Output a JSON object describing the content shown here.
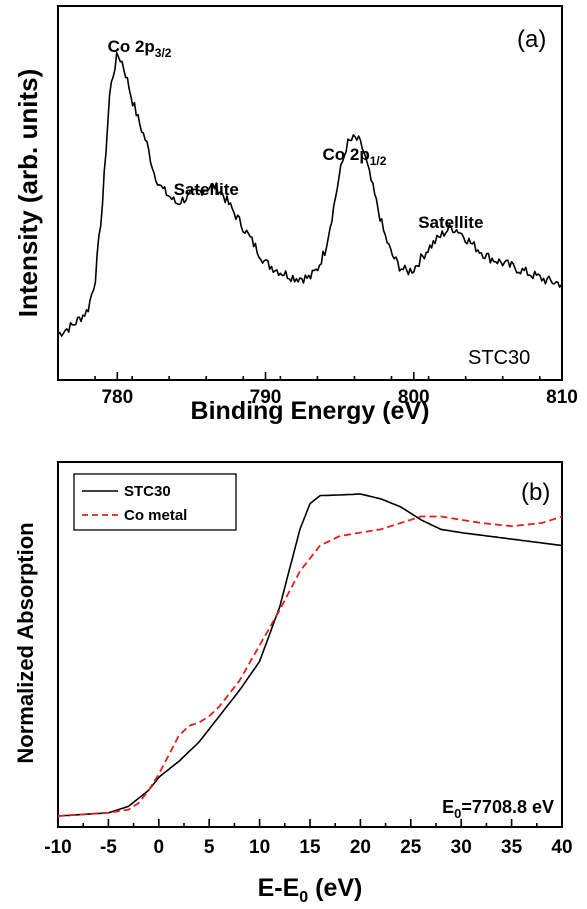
{
  "chart_data": [
    {
      "panel": "(a)",
      "type": "line",
      "xlabel": "Binding Energy (eV)",
      "ylabel": "Intensity (arb. units)",
      "xlim": [
        776,
        810
      ],
      "xticks": [
        780,
        790,
        800,
        810
      ],
      "yticks_labeled": false,
      "grid": false,
      "sample_label": "STC30",
      "annotations": [
        {
          "text": "Co 2p",
          "sub": "3/2",
          "x": 781.5
        },
        {
          "text": "Satellite",
          "sub": "",
          "x": 786
        },
        {
          "text": "Co 2p",
          "sub": "1/2",
          "x": 796
        },
        {
          "text": "Satellite",
          "sub": "",
          "x": 802.5
        }
      ],
      "series": [
        {
          "color": "#000000",
          "x": [
            776,
            777,
            778,
            778.5,
            779,
            779.5,
            780,
            780.3,
            780.6,
            781,
            781.5,
            782,
            782.5,
            783,
            784,
            785,
            786,
            786.5,
            787,
            788,
            789,
            790,
            791,
            792,
            793,
            793.5,
            794,
            794.5,
            795,
            795.5,
            796,
            796.3,
            796.6,
            797,
            797.5,
            798,
            798.5,
            799,
            799.5,
            800,
            801,
            802,
            802.5,
            803,
            804,
            805,
            806,
            807,
            808,
            809,
            810
          ],
          "y": [
            0.06,
            0.09,
            0.14,
            0.24,
            0.5,
            0.88,
            1.0,
            0.98,
            0.93,
            0.85,
            0.77,
            0.7,
            0.6,
            0.55,
            0.5,
            0.53,
            0.55,
            0.56,
            0.54,
            0.46,
            0.38,
            0.3,
            0.27,
            0.25,
            0.25,
            0.28,
            0.34,
            0.46,
            0.6,
            0.7,
            0.72,
            0.71,
            0.68,
            0.6,
            0.5,
            0.4,
            0.33,
            0.29,
            0.27,
            0.28,
            0.35,
            0.4,
            0.42,
            0.41,
            0.36,
            0.32,
            0.3,
            0.28,
            0.26,
            0.24,
            0.23
          ]
        }
      ]
    },
    {
      "panel": "(b)",
      "type": "line",
      "xlabel": "E-E",
      "xlabel_sub": "0",
      "xlabel_suffix": " (eV)",
      "ylabel": "Normalized Absorption",
      "xlim": [
        -10,
        40
      ],
      "xticks": [
        -10,
        -5,
        0,
        5,
        10,
        15,
        20,
        25,
        30,
        35,
        40
      ],
      "yticks_labeled": false,
      "grid": false,
      "legend_position": "top-left",
      "e0_label": {
        "prefix": "E",
        "sub": "0",
        "rest": "=7708.8 eV"
      },
      "series": [
        {
          "name": "STC30",
          "color": "#000000",
          "dash": "solid",
          "x": [
            -10,
            -5,
            -3,
            -1,
            0,
            2,
            4,
            6,
            8,
            10,
            12,
            13,
            14,
            15,
            16,
            18,
            20,
            22,
            24,
            26,
            28,
            30,
            35,
            40
          ],
          "y": [
            0.0,
            0.01,
            0.03,
            0.08,
            0.12,
            0.17,
            0.23,
            0.31,
            0.39,
            0.48,
            0.65,
            0.77,
            0.89,
            0.97,
            0.995,
            0.997,
            1.0,
            0.985,
            0.96,
            0.92,
            0.89,
            0.88,
            0.86,
            0.84
          ]
        },
        {
          "name": "Co metal",
          "color": "#e0201c",
          "dash": "dashed",
          "x": [
            -10,
            -5,
            -3,
            -2,
            -1,
            0,
            1,
            2,
            3,
            4,
            5,
            6,
            8,
            10,
            12,
            14,
            16,
            18,
            20,
            22,
            24,
            26,
            28,
            30,
            32,
            35,
            38,
            40
          ],
          "y": [
            0.0,
            0.01,
            0.02,
            0.04,
            0.08,
            0.13,
            0.19,
            0.25,
            0.28,
            0.29,
            0.31,
            0.34,
            0.42,
            0.53,
            0.64,
            0.76,
            0.84,
            0.87,
            0.88,
            0.89,
            0.91,
            0.93,
            0.93,
            0.92,
            0.91,
            0.9,
            0.91,
            0.93
          ]
        }
      ]
    }
  ]
}
